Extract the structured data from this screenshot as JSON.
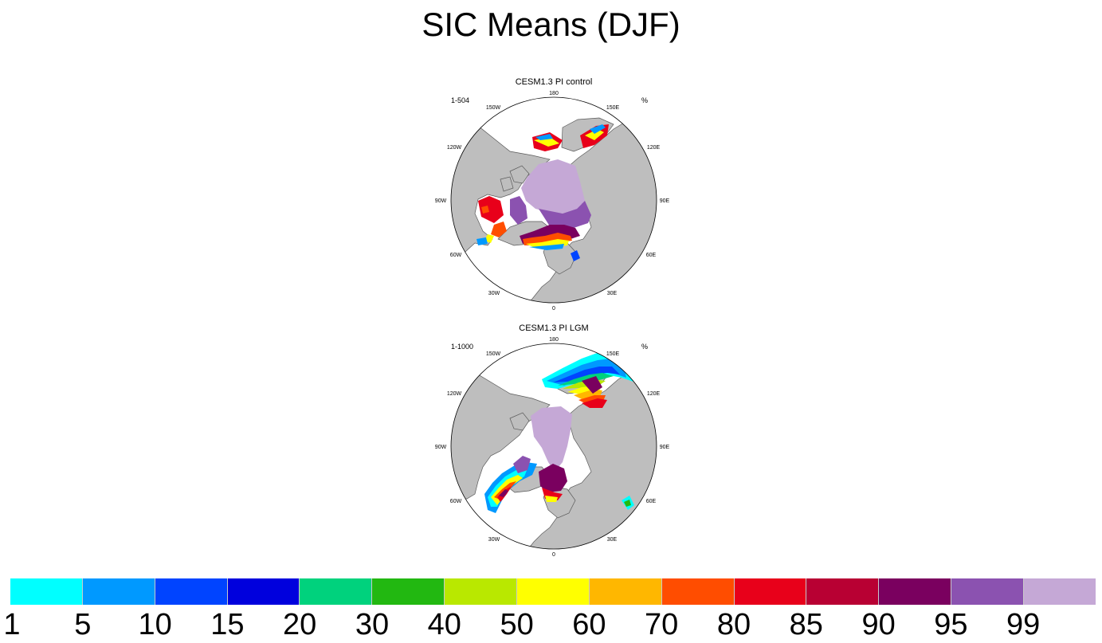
{
  "figure": {
    "title": "SIC Means (DJF)"
  },
  "panels": [
    {
      "title": "CESM1.3 PI control",
      "left_label": "1-504",
      "right_label": "%",
      "longitude_labels": [
        "180",
        "150E",
        "120E",
        "90E",
        "60E",
        "30E",
        "0",
        "30W",
        "60W",
        "90W",
        "120W",
        "150W"
      ]
    },
    {
      "title": "CESM1.3 PI LGM",
      "left_label": "1-1000",
      "right_label": "%",
      "longitude_labels": [
        "180",
        "150E",
        "120E",
        "90E",
        "60E",
        "30E",
        "0",
        "30W",
        "60W",
        "90W",
        "120W",
        "150W"
      ]
    }
  ],
  "colorbar": {
    "labels": [
      "1",
      "5",
      "10",
      "15",
      "20",
      "30",
      "40",
      "50",
      "60",
      "70",
      "80",
      "85",
      "90",
      "95",
      "99"
    ],
    "colors": [
      "#00ffff",
      "#0099ff",
      "#0044ff",
      "#0000dd",
      "#00d27d",
      "#22b811",
      "#b9e800",
      "#ffff00",
      "#ffb700",
      "#ff4d00",
      "#e8001a",
      "#b80033",
      "#7a005f",
      "#8b52b0",
      "#c5a8d6"
    ]
  },
  "colors": {
    "land": "#bebebe",
    "ocean": "#ffffff",
    "coast": "#5a5a5a"
  }
}
